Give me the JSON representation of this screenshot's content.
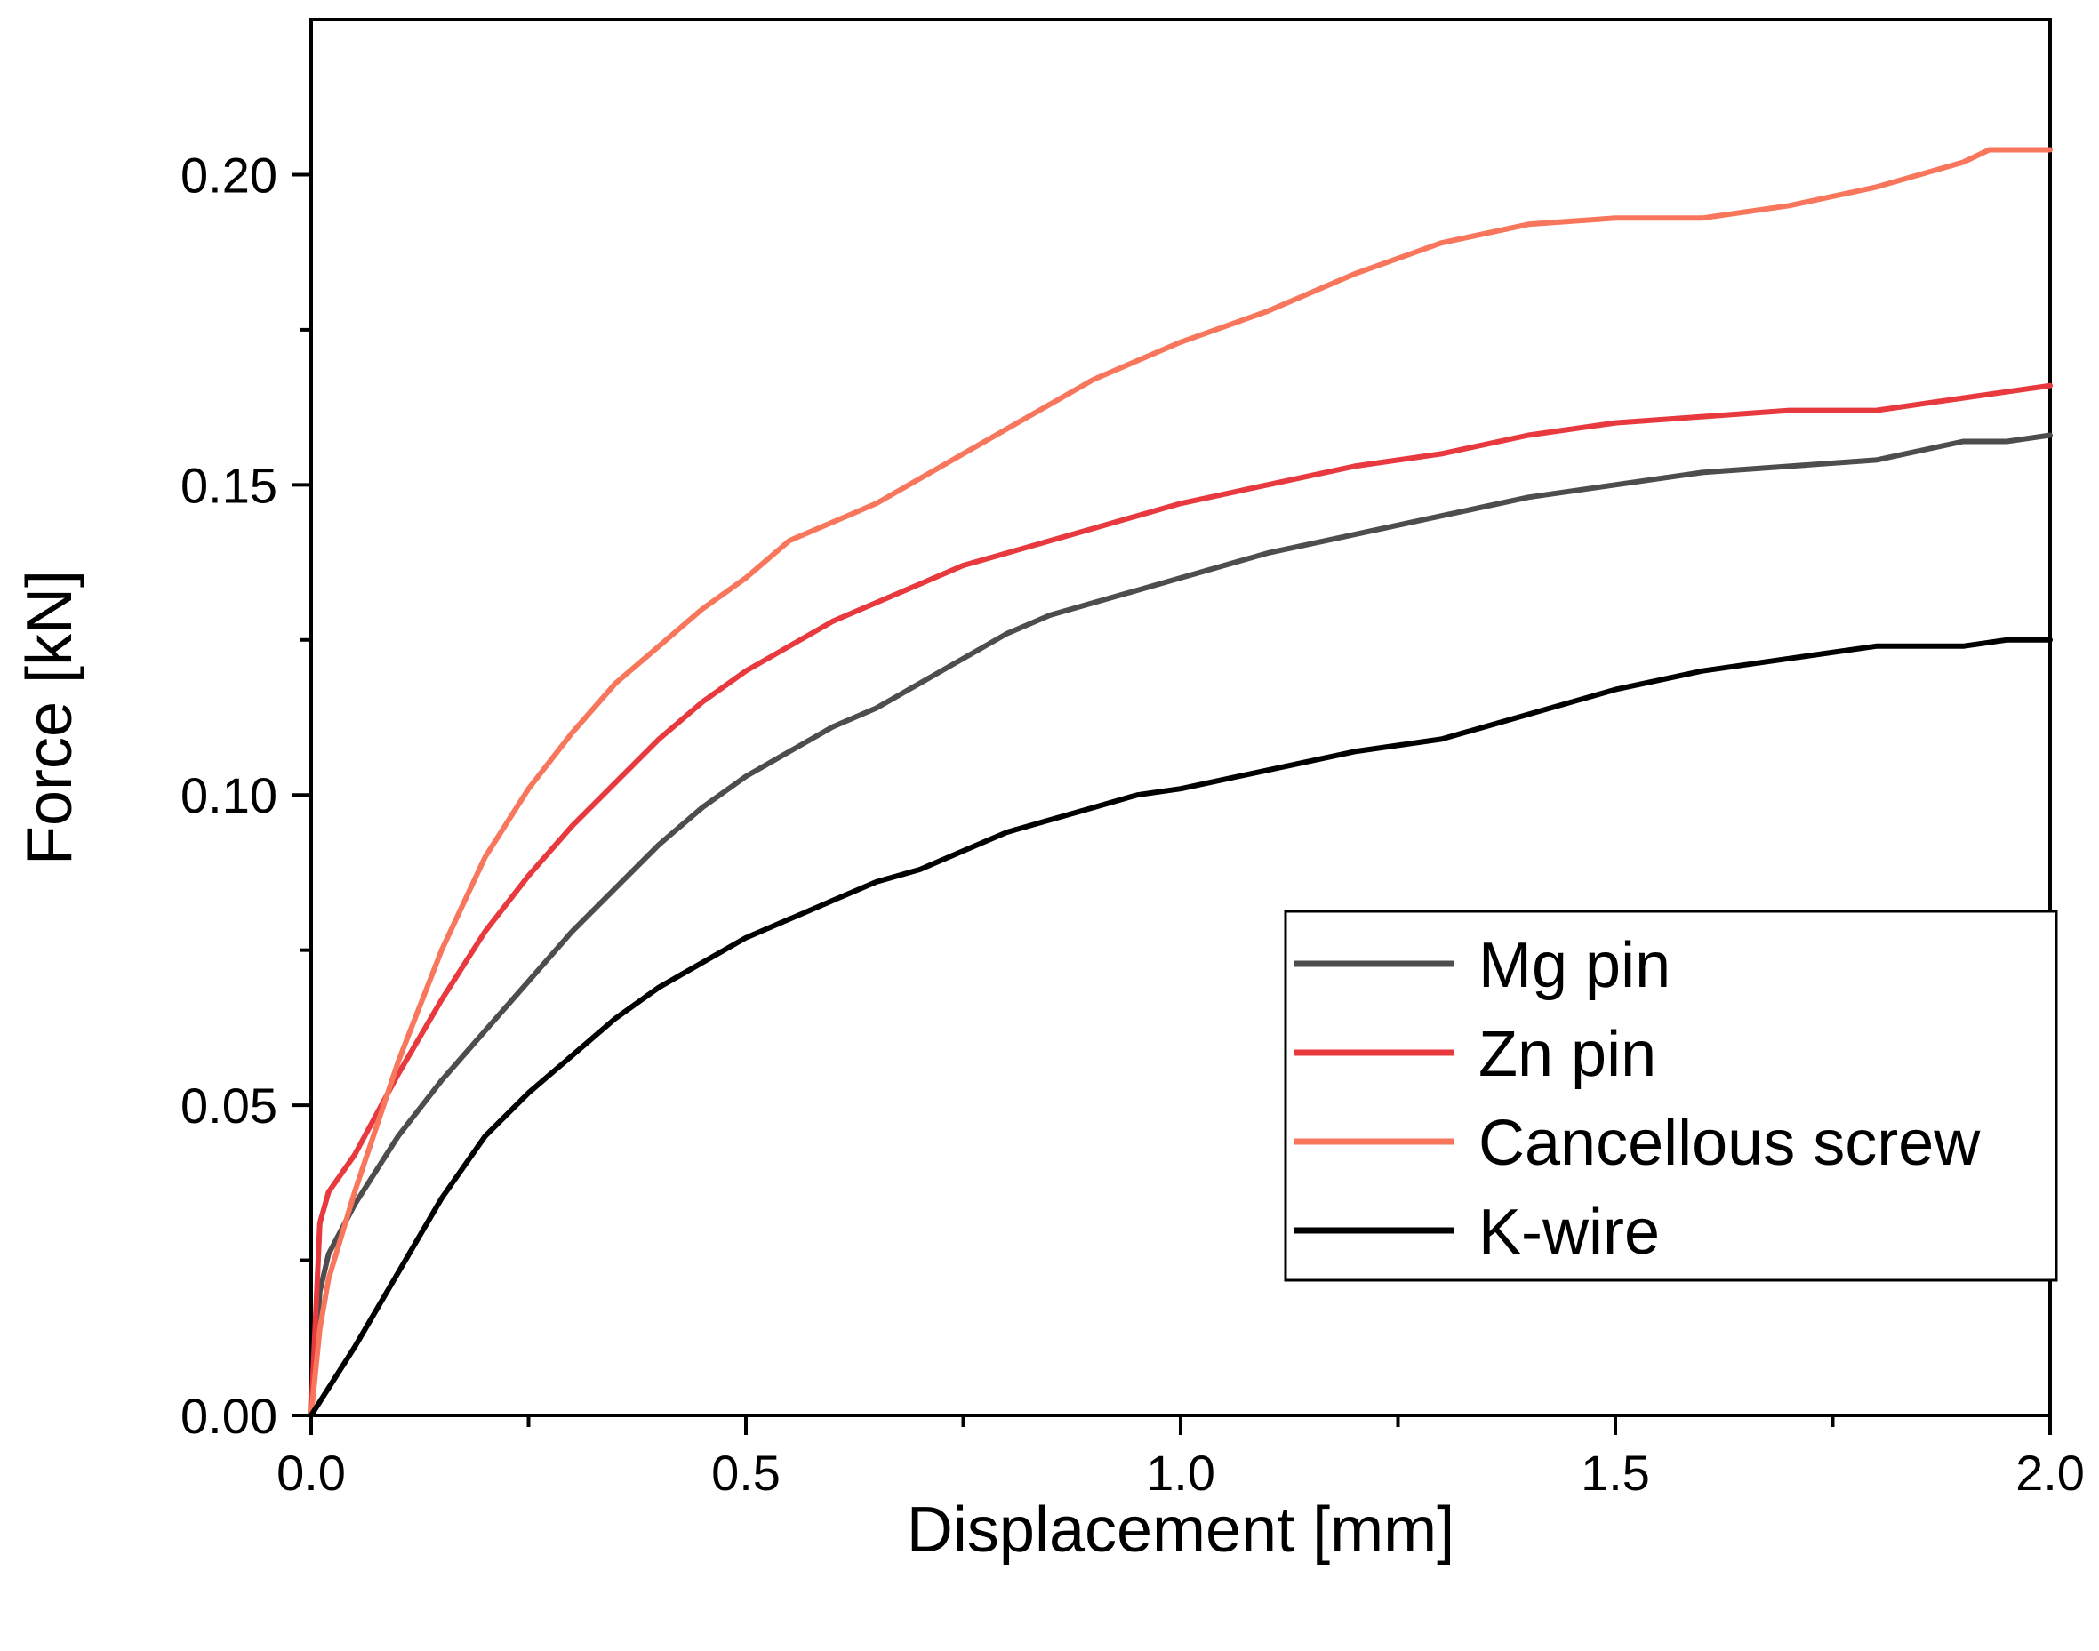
{
  "chart_data": {
    "type": "line",
    "title": "",
    "xlabel": "Displacement [mm]",
    "ylabel": "Force [kN]",
    "xlim": [
      0.0,
      2.0
    ],
    "ylim": [
      0.0,
      0.225
    ],
    "xticks": [
      "0.0",
      "0.5",
      "1.0",
      "1.5",
      "2.0"
    ],
    "xtick_values": [
      0.0,
      0.5,
      1.0,
      1.5,
      2.0
    ],
    "yticks": [
      "0.00",
      "0.05",
      "0.10",
      "0.15",
      "0.20"
    ],
    "ytick_values": [
      0.0,
      0.05,
      0.1,
      0.15,
      0.2
    ],
    "minor_xticks": [
      0.25,
      0.75,
      1.25,
      1.75
    ],
    "minor_yticks": [
      0.025,
      0.075,
      0.125,
      0.175
    ],
    "grid": false,
    "legend_position": "right-middle",
    "series": [
      {
        "name": "Mg pin",
        "color": "#4d4d4d",
        "x": [
          0.0,
          0.01,
          0.02,
          0.05,
          0.1,
          0.15,
          0.2,
          0.25,
          0.3,
          0.35,
          0.4,
          0.45,
          0.5,
          0.55,
          0.6,
          0.65,
          0.7,
          0.75,
          0.8,
          0.85,
          0.9,
          0.95,
          1.0,
          1.1,
          1.2,
          1.3,
          1.4,
          1.5,
          1.6,
          1.7,
          1.8,
          1.9,
          1.95,
          2.0
        ],
        "y": [
          0.0,
          0.02,
          0.026,
          0.034,
          0.045,
          0.054,
          0.062,
          0.07,
          0.078,
          0.085,
          0.092,
          0.098,
          0.103,
          0.107,
          0.111,
          0.114,
          0.118,
          0.122,
          0.126,
          0.129,
          0.131,
          0.133,
          0.135,
          0.139,
          0.142,
          0.145,
          0.148,
          0.15,
          0.152,
          0.153,
          0.154,
          0.157,
          0.157,
          0.158
        ]
      },
      {
        "name": "Zn pin",
        "color": "#e8393e",
        "x": [
          0.0,
          0.01,
          0.02,
          0.05,
          0.1,
          0.15,
          0.2,
          0.25,
          0.3,
          0.35,
          0.4,
          0.45,
          0.5,
          0.55,
          0.6,
          0.65,
          0.7,
          0.75,
          0.8,
          0.85,
          0.9,
          0.95,
          1.0,
          1.1,
          1.2,
          1.3,
          1.4,
          1.5,
          1.6,
          1.7,
          1.8,
          1.9,
          2.0
        ],
        "y": [
          0.0,
          0.031,
          0.036,
          0.042,
          0.055,
          0.067,
          0.078,
          0.087,
          0.095,
          0.102,
          0.109,
          0.115,
          0.12,
          0.124,
          0.128,
          0.131,
          0.134,
          0.137,
          0.139,
          0.141,
          0.143,
          0.145,
          0.147,
          0.15,
          0.153,
          0.155,
          0.158,
          0.16,
          0.161,
          0.162,
          0.162,
          0.164,
          0.166
        ]
      },
      {
        "name": "Cancellous screw",
        "color": "#f8765c",
        "x": [
          0.0,
          0.01,
          0.02,
          0.05,
          0.1,
          0.15,
          0.2,
          0.25,
          0.3,
          0.35,
          0.4,
          0.45,
          0.5,
          0.55,
          0.6,
          0.65,
          0.7,
          0.75,
          0.8,
          0.85,
          0.9,
          0.95,
          1.0,
          1.1,
          1.2,
          1.3,
          1.4,
          1.5,
          1.6,
          1.7,
          1.8,
          1.9,
          1.93,
          2.0
        ],
        "y": [
          0.0,
          0.014,
          0.022,
          0.036,
          0.057,
          0.075,
          0.09,
          0.101,
          0.11,
          0.118,
          0.124,
          0.13,
          0.135,
          0.141,
          0.144,
          0.147,
          0.151,
          0.155,
          0.159,
          0.163,
          0.167,
          0.17,
          0.173,
          0.178,
          0.184,
          0.189,
          0.192,
          0.193,
          0.193,
          0.195,
          0.198,
          0.202,
          0.204,
          0.204
        ]
      },
      {
        "name": "K-wire",
        "color": "#000000",
        "x": [
          0.0,
          0.05,
          0.1,
          0.15,
          0.2,
          0.25,
          0.3,
          0.35,
          0.4,
          0.45,
          0.5,
          0.55,
          0.6,
          0.65,
          0.7,
          0.75,
          0.8,
          0.85,
          0.9,
          0.95,
          1.0,
          1.1,
          1.2,
          1.3,
          1.4,
          1.5,
          1.6,
          1.7,
          1.8,
          1.9,
          1.95,
          2.0
        ],
        "y": [
          0.0,
          0.011,
          0.023,
          0.035,
          0.045,
          0.052,
          0.058,
          0.064,
          0.069,
          0.073,
          0.077,
          0.08,
          0.083,
          0.086,
          0.088,
          0.091,
          0.094,
          0.096,
          0.098,
          0.1,
          0.101,
          0.104,
          0.107,
          0.109,
          0.113,
          0.117,
          0.12,
          0.122,
          0.124,
          0.124,
          0.125,
          0.125
        ]
      }
    ]
  }
}
